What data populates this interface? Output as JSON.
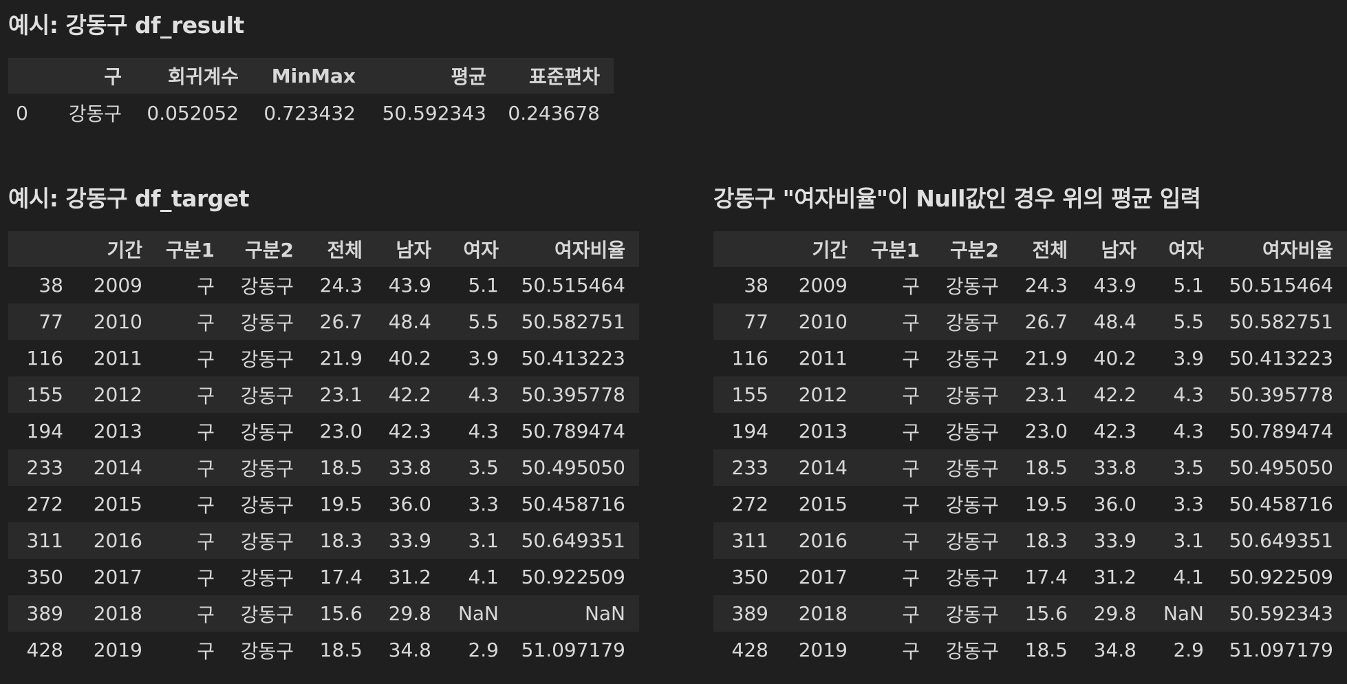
{
  "result_section": {
    "title": "예시: 강동구 df_result",
    "columns": [
      "",
      "구",
      "회귀계수",
      "MinMax",
      "평균",
      "표준편차"
    ],
    "rows": [
      [
        "0",
        "강동구",
        "0.052052",
        "0.723432",
        "50.592343",
        "0.243678"
      ]
    ]
  },
  "target_section": {
    "title": "예시: 강동구 df_target",
    "columns": [
      "",
      "기간",
      "구분1",
      "구분2",
      "전체",
      "남자",
      "여자",
      "여자비율"
    ],
    "rows": [
      [
        "38",
        "2009",
        "구",
        "강동구",
        "24.3",
        "43.9",
        "5.1",
        "50.515464"
      ],
      [
        "77",
        "2010",
        "구",
        "강동구",
        "26.7",
        "48.4",
        "5.5",
        "50.582751"
      ],
      [
        "116",
        "2011",
        "구",
        "강동구",
        "21.9",
        "40.2",
        "3.9",
        "50.413223"
      ],
      [
        "155",
        "2012",
        "구",
        "강동구",
        "23.1",
        "42.2",
        "4.3",
        "50.395778"
      ],
      [
        "194",
        "2013",
        "구",
        "강동구",
        "23.0",
        "42.3",
        "4.3",
        "50.789474"
      ],
      [
        "233",
        "2014",
        "구",
        "강동구",
        "18.5",
        "33.8",
        "3.5",
        "50.495050"
      ],
      [
        "272",
        "2015",
        "구",
        "강동구",
        "19.5",
        "36.0",
        "3.3",
        "50.458716"
      ],
      [
        "311",
        "2016",
        "구",
        "강동구",
        "18.3",
        "33.9",
        "3.1",
        "50.649351"
      ],
      [
        "350",
        "2017",
        "구",
        "강동구",
        "17.4",
        "31.2",
        "4.1",
        "50.922509"
      ],
      [
        "389",
        "2018",
        "구",
        "강동구",
        "15.6",
        "29.8",
        "NaN",
        "NaN"
      ],
      [
        "428",
        "2019",
        "구",
        "강동구",
        "18.5",
        "34.8",
        "2.9",
        "51.097179"
      ]
    ]
  },
  "filled_section": {
    "title": "강동구 \"여자비율\"이 Null값인 경우 위의 평균 입력",
    "columns": [
      "",
      "기간",
      "구분1",
      "구분2",
      "전체",
      "남자",
      "여자",
      "여자비율"
    ],
    "rows": [
      [
        "38",
        "2009",
        "구",
        "강동구",
        "24.3",
        "43.9",
        "5.1",
        "50.515464"
      ],
      [
        "77",
        "2010",
        "구",
        "강동구",
        "26.7",
        "48.4",
        "5.5",
        "50.582751"
      ],
      [
        "116",
        "2011",
        "구",
        "강동구",
        "21.9",
        "40.2",
        "3.9",
        "50.413223"
      ],
      [
        "155",
        "2012",
        "구",
        "강동구",
        "23.1",
        "42.2",
        "4.3",
        "50.395778"
      ],
      [
        "194",
        "2013",
        "구",
        "강동구",
        "23.0",
        "42.3",
        "4.3",
        "50.789474"
      ],
      [
        "233",
        "2014",
        "구",
        "강동구",
        "18.5",
        "33.8",
        "3.5",
        "50.495050"
      ],
      [
        "272",
        "2015",
        "구",
        "강동구",
        "19.5",
        "36.0",
        "3.3",
        "50.458716"
      ],
      [
        "311",
        "2016",
        "구",
        "강동구",
        "18.3",
        "33.9",
        "3.1",
        "50.649351"
      ],
      [
        "350",
        "2017",
        "구",
        "강동구",
        "17.4",
        "31.2",
        "4.1",
        "50.922509"
      ],
      [
        "389",
        "2018",
        "구",
        "강동구",
        "15.6",
        "29.8",
        "NaN",
        "50.592343"
      ],
      [
        "428",
        "2019",
        "구",
        "강동구",
        "18.5",
        "34.8",
        "2.9",
        "51.097179"
      ]
    ]
  }
}
